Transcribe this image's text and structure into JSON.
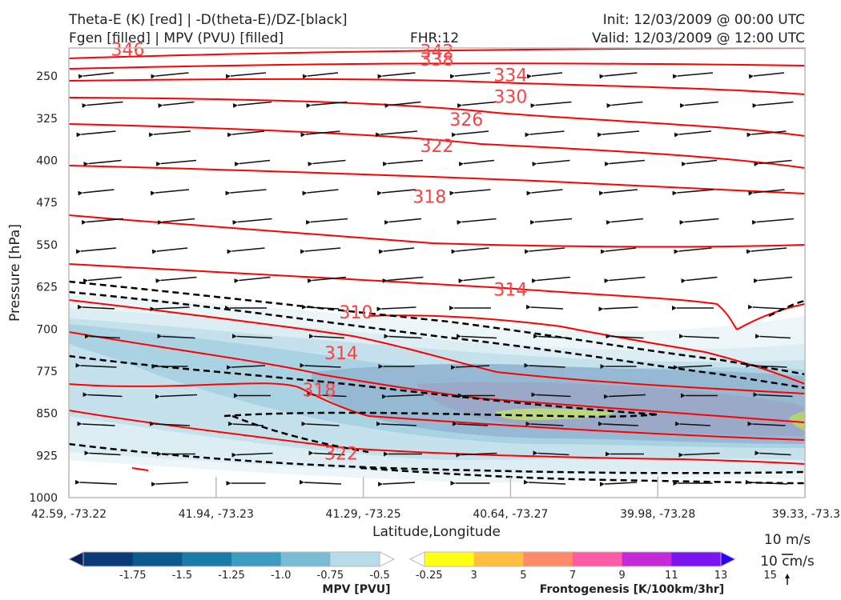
{
  "header": {
    "title_left_1": "Theta-E (K) [red] | -D(theta-E)/DZ-[black]",
    "title_left_2": "Fgen [filled] | MPV (PVU) [filled]",
    "fhr": "FHR:12",
    "init": "Init: 12/03/2009 @ 00:00 UTC",
    "valid": "Valid: 12/03/2009 @ 12:00 UTC"
  },
  "chart_data": {
    "type": "cross-section",
    "xlabel": "Latitude,Longitude",
    "ylabel": "Pressure [hPa]",
    "x_ticks": [
      "42.59, -73.22",
      "41.94, -73.23",
      "41.29, -73.25",
      "40.64, -73.27",
      "39.98, -73.28",
      "39.33, -73.3"
    ],
    "y_ticks": [
      250,
      325,
      400,
      475,
      550,
      625,
      700,
      775,
      850,
      925,
      1000
    ],
    "ylim": [
      1000,
      200
    ],
    "y_reversed": true,
    "theta_e_color": "#ff0000",
    "theta_e_contour_labels": [
      {
        "value": "346",
        "x": 0.4,
        "p": 202
      },
      {
        "value": "342",
        "x": 2.5,
        "p": 205
      },
      {
        "value": "338",
        "x": 2.5,
        "p": 220
      },
      {
        "value": "334",
        "x": 3.0,
        "p": 248
      },
      {
        "value": "330",
        "x": 3.0,
        "p": 286
      },
      {
        "value": "326",
        "x": 2.7,
        "p": 327
      },
      {
        "value": "322",
        "x": 2.5,
        "p": 374
      },
      {
        "value": "318",
        "x": 2.45,
        "p": 464
      },
      {
        "value": "314",
        "x": 3.0,
        "p": 629
      },
      {
        "value": "310",
        "x": 1.95,
        "p": 670
      },
      {
        "value": "314",
        "x": 1.85,
        "p": 742
      },
      {
        "value": "318",
        "x": 1.7,
        "p": 808
      },
      {
        "value": "322",
        "x": 1.85,
        "p": 921
      }
    ],
    "wind_reference": {
      "label_horizontal": "10 m/s",
      "label_vertical": "10 cm/s"
    },
    "mpv_colorbar": {
      "title": "MPV [PVU]",
      "labels": [
        "-1.75",
        "-1.5",
        "-1.25",
        "-1.0",
        "-0.75",
        "-0.5",
        "-0.25"
      ],
      "colors": [
        "#0a1f5c",
        "#0b3a78",
        "#0b5a8e",
        "#1a7ca6",
        "#3d9cc0",
        "#79bbd5",
        "#b7dbe8",
        "#ffffff"
      ]
    },
    "fgen_colorbar": {
      "title": "Frontogenesis [K/100km/3hr]",
      "labels": [
        "3",
        "5",
        "7",
        "9",
        "11",
        "13",
        "15"
      ],
      "colors": [
        "#ffffff",
        "#ffff14",
        "#ffbf40",
        "#ff8a6a",
        "#ff5aa5",
        "#c52ad8",
        "#7a14f0",
        "#2a00ff"
      ]
    }
  }
}
